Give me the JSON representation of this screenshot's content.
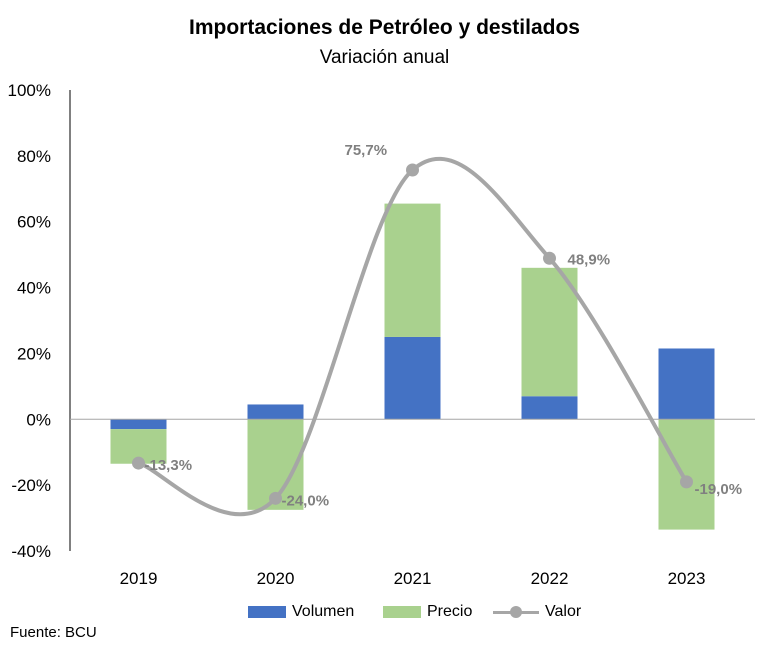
{
  "title": "Importaciones de Petróleo y destilados",
  "subtitle": "Variación anual",
  "source": "Fuente: BCU",
  "colors": {
    "volumen": "#4472c4",
    "precio": "#a9d18e",
    "valor": "#a6a6a6",
    "label": "#808080"
  },
  "legend": {
    "volumen": "Volumen",
    "precio": "Precio",
    "valor": "Valor"
  },
  "chart_data": {
    "type": "bar",
    "stacked": true,
    "categories": [
      "2019",
      "2020",
      "2021",
      "2022",
      "2023"
    ],
    "series": [
      {
        "name": "Volumen",
        "type": "bar",
        "values": [
          -3,
          4.5,
          25,
          7,
          21.5
        ]
      },
      {
        "name": "Precio",
        "type": "bar",
        "values": [
          -10.5,
          -27.5,
          40.5,
          39,
          -33.5
        ]
      },
      {
        "name": "Valor",
        "type": "line",
        "values": [
          -13.3,
          -24.0,
          75.7,
          48.9,
          -19.0
        ]
      }
    ],
    "data_labels": [
      "-13,3%",
      "-24,0%",
      "75,7%",
      "48,9%",
      "-19,0%"
    ],
    "y_ticks": [
      "100%",
      "80%",
      "60%",
      "40%",
      "20%",
      "0%",
      "-20%",
      "-40%"
    ],
    "ylim": [
      -40,
      100
    ],
    "grid": false,
    "legend_position": "bottom"
  }
}
